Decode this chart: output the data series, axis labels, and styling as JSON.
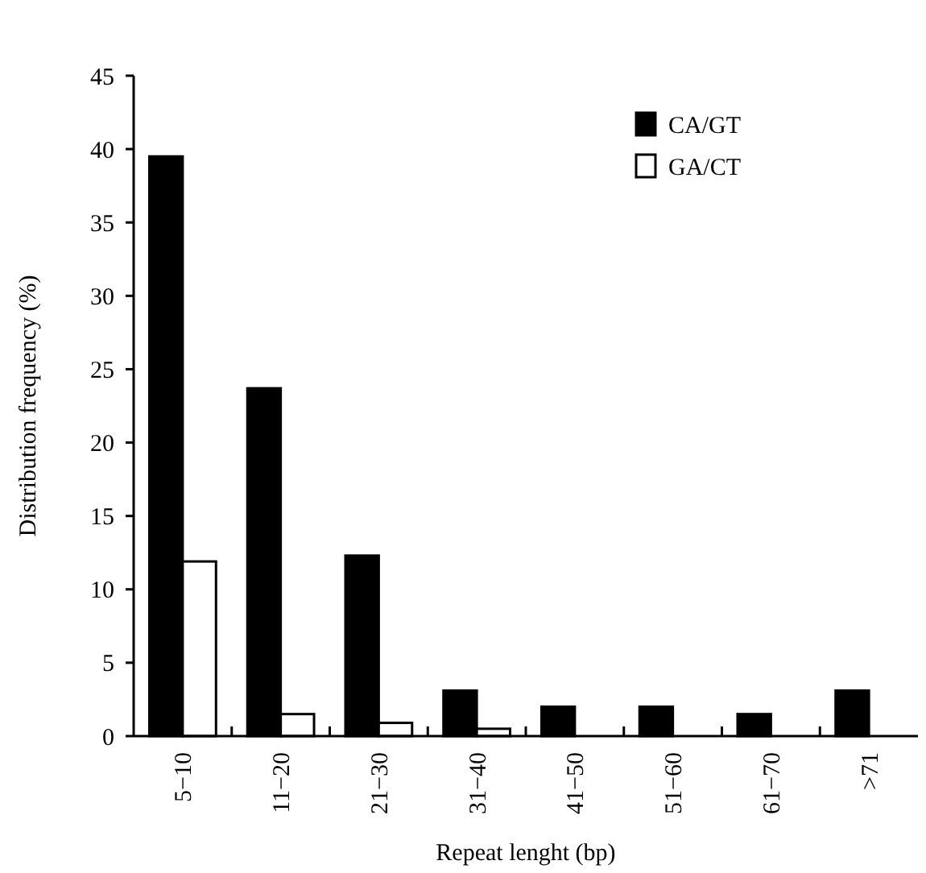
{
  "chart_data": {
    "type": "bar",
    "xlabel": "Repeat lenght (bp)",
    "ylabel": "Distribution frequency (%)",
    "categories": [
      "5−10",
      "11−20",
      "21−30",
      "31−40",
      "41−50",
      "51−60",
      "61−70",
      ">71"
    ],
    "series": [
      {
        "name": "CA/GT",
        "color": "#000000",
        "values": [
          39.5,
          23.7,
          12.3,
          3.1,
          2,
          2,
          1.5,
          3.1
        ]
      },
      {
        "name": "GA/CT",
        "color": "#ffffff",
        "values": [
          11.9,
          1.5,
          0.9,
          0.5,
          null,
          null,
          null,
          null
        ]
      }
    ],
    "ylim": [
      0,
      45
    ],
    "yticks": [
      0,
      5,
      10,
      15,
      20,
      25,
      30,
      35,
      40,
      45
    ],
    "grid": false,
    "legend": "top right"
  }
}
